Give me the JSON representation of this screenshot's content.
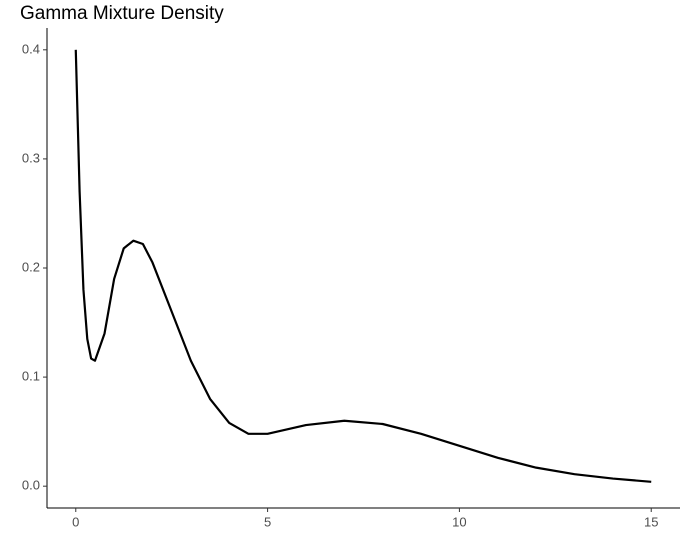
{
  "chart_data": {
    "type": "line",
    "title": "Gamma Mixture Density",
    "x": [
      0,
      0.1,
      0.2,
      0.3,
      0.4,
      0.5,
      0.75,
      1,
      1.25,
      1.5,
      1.75,
      2,
      2.5,
      3,
      3.5,
      4,
      4.5,
      5,
      5.5,
      6,
      7,
      8,
      9,
      10,
      11,
      12,
      13,
      14,
      15
    ],
    "series": [
      {
        "color": "#000000",
        "values": [
          0.4,
          0.27,
          0.18,
          0.135,
          0.117,
          0.115,
          0.14,
          0.19,
          0.218,
          0.225,
          0.222,
          0.205,
          0.16,
          0.115,
          0.08,
          0.058,
          0.048,
          0.048,
          0.052,
          0.056,
          0.06,
          0.057,
          0.048,
          0.037,
          0.026,
          0.017,
          0.011,
          0.007,
          0.004
        ]
      }
    ],
    "xlim": [
      -0.75,
      15.75
    ],
    "xticks": [
      0,
      5,
      10,
      15
    ],
    "ylim": [
      -0.02,
      0.42
    ],
    "yticks": [
      {
        "value": 0,
        "label": "0.0"
      },
      0.1,
      0.2,
      0.3,
      0.4
    ]
  }
}
